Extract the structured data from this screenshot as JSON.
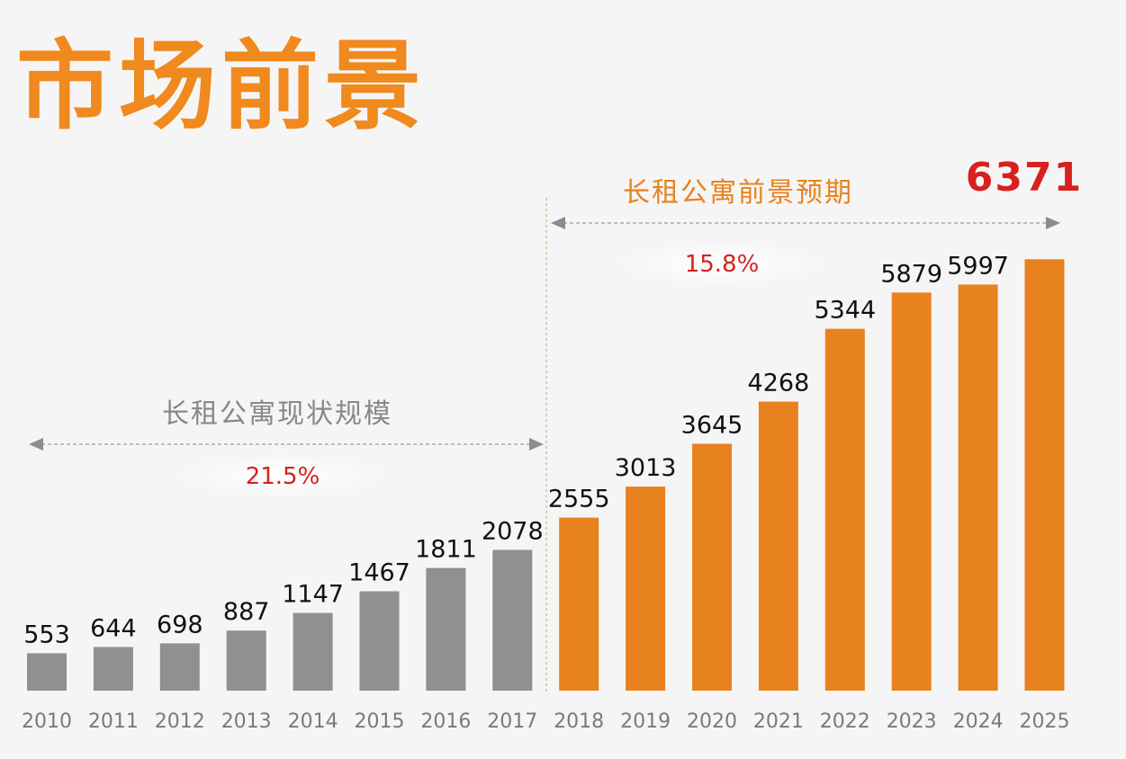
{
  "title": "市场前景",
  "colors": {
    "title": "#f0891e",
    "current": "#909090",
    "forecast": "#e8821e",
    "growth": "#d8201e",
    "value_label": "#111111",
    "axis_label": "#7a7a7a",
    "section_label_current": "#888888",
    "section_label_forecast": "#e8821e",
    "highlight": "#d8201e"
  },
  "chart_data": {
    "type": "bar",
    "categories": [
      "2010",
      "2011",
      "2012",
      "2013",
      "2014",
      "2015",
      "2016",
      "2017",
      "2018",
      "2019",
      "2020",
      "2021",
      "2022",
      "2023",
      "2024",
      "2025"
    ],
    "values": [
      553,
      644,
      698,
      887,
      1147,
      1467,
      1811,
      2078,
      2555,
      3013,
      3645,
      4268,
      5344,
      5879,
      5997,
      6371
    ],
    "value_labels": [
      "553",
      "644",
      "698",
      "887",
      "1147",
      "1467",
      "1811",
      "2078",
      "2555",
      "3013",
      "3645",
      "4268",
      "5344",
      "5879",
      "5997",
      ""
    ],
    "highlight_label": "6371",
    "segments": [
      {
        "label": "长租公寓现状规模",
        "growth": "21.5%",
        "from": "2010",
        "to": "2017"
      },
      {
        "label": "长租公寓前景预期",
        "growth": "15.8%",
        "from": "2018",
        "to": "2025"
      }
    ],
    "grid": false,
    "legend": "none"
  }
}
